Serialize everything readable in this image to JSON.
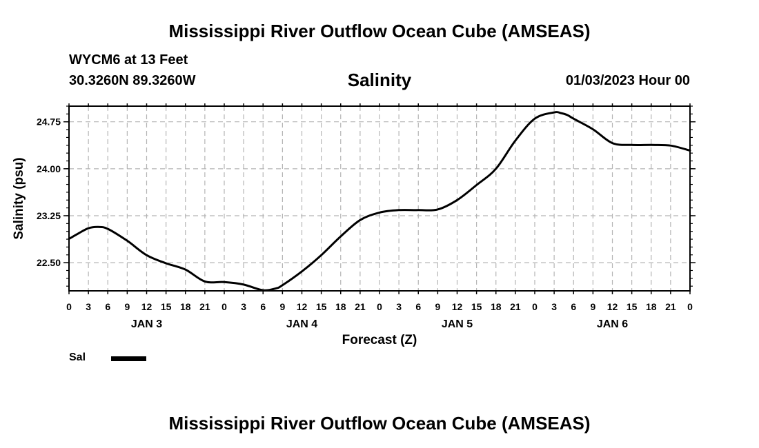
{
  "title_top": "Mississippi River Outflow Ocean Cube (AMSEAS)",
  "title_bottom": "Mississippi River Outflow Ocean Cube (AMSEAS)",
  "station": "WYCM6 at 13 Feet",
  "coords": "30.3260N  89.3260W",
  "run_time": "01/03/2023 Hour 00",
  "chart_data": {
    "type": "line",
    "title": "Salinity",
    "xlabel": "Forecast (Z)",
    "ylabel": "Salinity (psu)",
    "x_unit": "forecast hours",
    "xlim": [
      0,
      96
    ],
    "ylim": [
      22.05,
      25.0
    ],
    "yticks": [
      22.5,
      23.25,
      24.0,
      24.75
    ],
    "ytick_labels": [
      "22.50",
      "23.25",
      "24.00",
      "24.75"
    ],
    "xticks": [
      0,
      3,
      6,
      9,
      12,
      15,
      18,
      21,
      24,
      27,
      30,
      33,
      36,
      39,
      42,
      45,
      48,
      51,
      54,
      57,
      60,
      63,
      66,
      69,
      72,
      75,
      78,
      81,
      84,
      87,
      90,
      93,
      96
    ],
    "xtick_labels": [
      "0",
      "3",
      "6",
      "9",
      "12",
      "15",
      "18",
      "21",
      "0",
      "3",
      "6",
      "9",
      "12",
      "15",
      "18",
      "21",
      "0",
      "3",
      "6",
      "9",
      "12",
      "15",
      "18",
      "21",
      "0",
      "3",
      "6",
      "9",
      "12",
      "15",
      "18",
      "21",
      "0"
    ],
    "day_labels": [
      {
        "label": "JAN 3",
        "hour": 12
      },
      {
        "label": "JAN 4",
        "hour": 36
      },
      {
        "label": "JAN 5",
        "hour": 60
      },
      {
        "label": "JAN 6",
        "hour": 84
      }
    ],
    "grid": true,
    "legend": "bottom-left",
    "series": [
      {
        "name": "Sal",
        "x": [
          0,
          1.5,
          3,
          4.5,
          6,
          9,
          12,
          15,
          18,
          21,
          24,
          27,
          30,
          32,
          33,
          36,
          39,
          42,
          45,
          48,
          51,
          54,
          57,
          60,
          63,
          66,
          69,
          72,
          75,
          76,
          77,
          78,
          81,
          84,
          87,
          90,
          93,
          96
        ],
        "y": [
          22.88,
          22.97,
          23.05,
          23.07,
          23.04,
          22.85,
          22.62,
          22.49,
          22.39,
          22.2,
          22.19,
          22.15,
          22.06,
          22.09,
          22.14,
          22.36,
          22.62,
          22.92,
          23.18,
          23.3,
          23.34,
          23.34,
          23.35,
          23.5,
          23.74,
          24.0,
          24.45,
          24.8,
          24.9,
          24.89,
          24.86,
          24.8,
          24.63,
          24.41,
          24.38,
          24.38,
          24.37,
          24.29
        ]
      }
    ]
  }
}
